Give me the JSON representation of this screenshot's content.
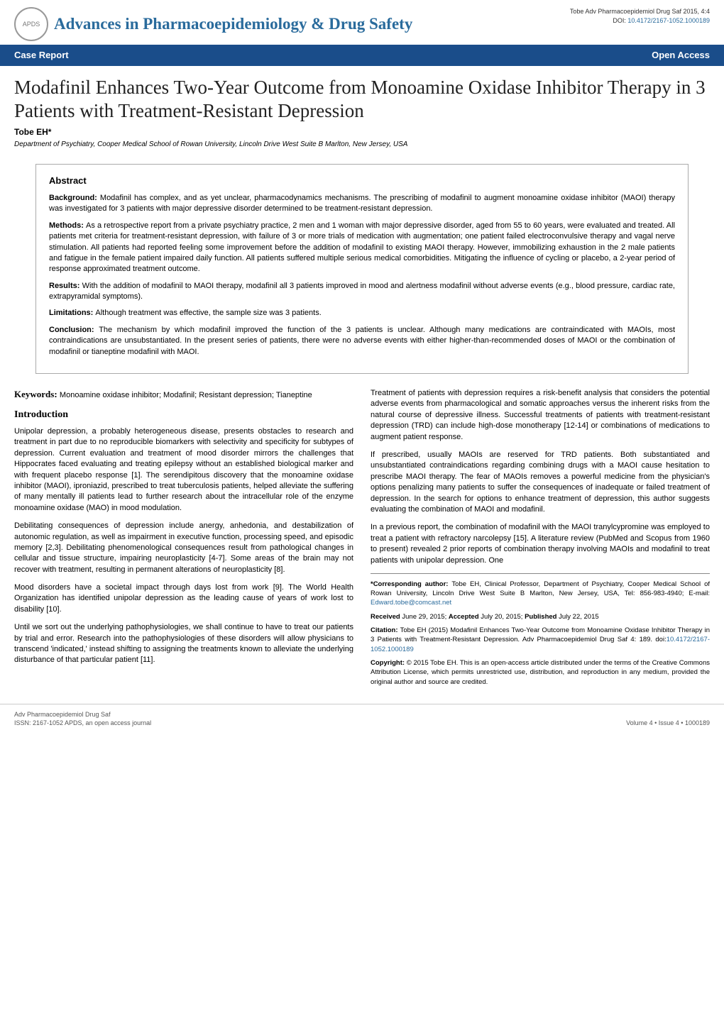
{
  "header": {
    "journal_title": "Advances in Pharmacoepidemiology & Drug Safety",
    "logo_text": "APDS",
    "citation_line": "Tobe Adv Pharmacoepidemiol Drug Saf 2015, 4:4",
    "doi_label": "DOI: ",
    "doi": "10.4172/2167-1052.1000189"
  },
  "band": {
    "left": "Case Report",
    "right": "Open Access"
  },
  "article": {
    "title": "Modafinil Enhances Two-Year Outcome from Monoamine Oxidase Inhibitor Therapy in 3 Patients with Treatment-Resistant Depression",
    "author": "Tobe EH*",
    "affiliation": "Department of Psychiatry, Cooper Medical School of Rowan University, Lincoln Drive West Suite B Marlton, New Jersey, USA"
  },
  "abstract": {
    "heading": "Abstract",
    "background_label": "Background: ",
    "background": "Modafinil has complex, and as yet unclear, pharmacodynamics mechanisms. The prescribing of   modafinil to augment monoamine oxidase inhibitor (MAOI) therapy was investigated for 3 patients with major depressive disorder determined to be treatment-resistant depression.",
    "methods_label": "Methods: ",
    "methods": "As a retrospective report from a private psychiatry practice, 2 men and 1 woman with major depressive disorder, aged from 55 to 60 years, were evaluated and treated. All patients met criteria for treatment-resistant depression, with failure of 3 or more trials of medication with augmentation; one patient failed electroconvulsive therapy and vagal nerve stimulation. All patients had reported feeling some improvement before the addition of modafinil to existing MAOI therapy. However, immobilizing exhaustion in the 2 male patients and fatigue in the female patient impaired daily function. All patients suffered multiple serious medical comorbidities. Mitigating the influence of cycling or placebo, a 2-year period of response approximated treatment outcome.",
    "results_label": "Results: ",
    "results": "With the addition of modafinil to MAOI therapy, modafinil all 3 patients improved in mood and alertness modafinil without adverse events (e.g., blood pressure, cardiac rate, extrapyramidal symptoms).",
    "limitations_label": "Limitations: ",
    "limitations": "Although treatment was effective, the sample size was 3 patients.",
    "conclusion_label": "Conclusion: ",
    "conclusion": "The mechanism by which modafinil improved the function of the 3 patients is unclear. Although many medications are contraindicated with MAOIs, most contraindications are unsubstantiated. In the present series of patients, there were no adverse events with either higher-than-recommended doses of MAOI or the combination of modafinil or tianeptine modafinil with MAOI."
  },
  "body": {
    "keywords_label": "Keywords: ",
    "keywords": "Monoamine oxidase inhibitor; Modafinil; Resistant depression; Tianeptine",
    "intro_heading": "Introduction",
    "left_paras": [
      "Unipolar depression, a probably heterogeneous disease, presents obstacles to research and treatment in part due to no reproducible biomarkers with selectivity and specificity for subtypes of depression. Current evaluation and treatment of mood disorder mirrors the challenges that Hippocrates faced evaluating and treating epilepsy without an established biological marker and with frequent placebo response [1]. The serendipitous discovery that the monoamine oxidase inhibitor (MAOI), iproniazid, prescribed to treat tuberculosis patients, helped alleviate the suffering of many mentally ill patients lead to further research about the intracellular role of the enzyme monoamine oxidase (MAO) in mood modulation.",
      "Debilitating consequences of depression include anergy, anhedonia, and destabilization of autonomic regulation, as well as impairment in executive function, processing speed, and episodic memory [2,3]. Debilitating phenomenological consequences result from pathological changes in cellular and tissue structure, impairing neuroplasticity [4-7]. Some areas of the brain may not recover with treatment, resulting in permanent alterations of neuroplasticity [8].",
      "Mood disorders have a societal impact through days lost from work [9]. The World Health Organization has identified unipolar depression as the leading cause of years of work lost to disability [10].",
      "Until we sort out the underlying pathophysiologies, we shall continue to have to treat our patients by trial and error. Research into the pathophysiologies of these disorders will allow physicians to transcend 'indicated,' instead shifting to assigning the treatments known to alleviate the underlying disturbance of that particular patient [11]."
    ],
    "right_paras": [
      "Treatment of patients with depression requires a risk-benefit analysis that considers the potential adverse events from pharmacological and somatic approaches versus the inherent risks from the natural course of depressive illness. Successful treatments of patients with treatment-resistant depression (TRD) can include high-dose monotherapy [12-14] or combinations of medications to augment patient response.",
      "If prescribed, usually MAOIs are reserved for TRD patients. Both substantiated and unsubstantiated contraindications regarding combining drugs with a MAOI cause hesitation to prescribe MAOI therapy. The fear of MAOIs removes a powerful medicine from the physician's options penalizing many patients to suffer the consequences of inadequate or failed treatment of depression. In the search for options to enhance treatment of depression, this author suggests evaluating the combination of MAOI and modafinil.",
      "In a previous report, the combination of modafinil with the MAOI tranylcypromine was employed to treat a patient with refractory narcolepsy [15]. A literature review (PubMed and Scopus from 1960 to present) revealed 2 prior reports of combination therapy involving MAOIs and modafinil to treat patients with unipolar depression.  One"
    ]
  },
  "corr": {
    "author_label": "*Corresponding author: ",
    "author_text": "Tobe EH, Clinical Professor, Department of Psychiatry, Cooper Medical School of Rowan University, Lincoln Drive West Suite B Marlton, New Jersey, USA, Tel: 856-983-4940; E-mail: ",
    "email": "Edward.tobe@comcast.net",
    "received_label": "Received ",
    "received": "June 29, 2015; ",
    "accepted_label": "Accepted ",
    "accepted": "July 20, 2015; ",
    "published_label": "Published ",
    "published": "July 22, 2015",
    "citation_label": "Citation: ",
    "citation": "Tobe EH (2015) Modafinil Enhances Two-Year Outcome from Monoamine Oxidase Inhibitor Therapy in 3 Patients with Treatment-Resistant Depression. Adv Pharmacoepidemiol Drug Saf 4: 189. doi:",
    "citation_doi": "10.4172/2167-1052.1000189",
    "copyright_label": "Copyright: ",
    "copyright": "© 2015 Tobe EH. This is an open-access article distributed under the terms of the Creative Commons Attribution License, which permits unrestricted use, distribution, and reproduction in any medium, provided the original author and source are credited."
  },
  "footer": {
    "left_line1": "Adv Pharmacoepidemiol Drug Saf",
    "left_line2": "ISSN: 2167-1052 APDS, an open access journal",
    "right": "Volume 4 • Issue 4 • 1000189"
  }
}
